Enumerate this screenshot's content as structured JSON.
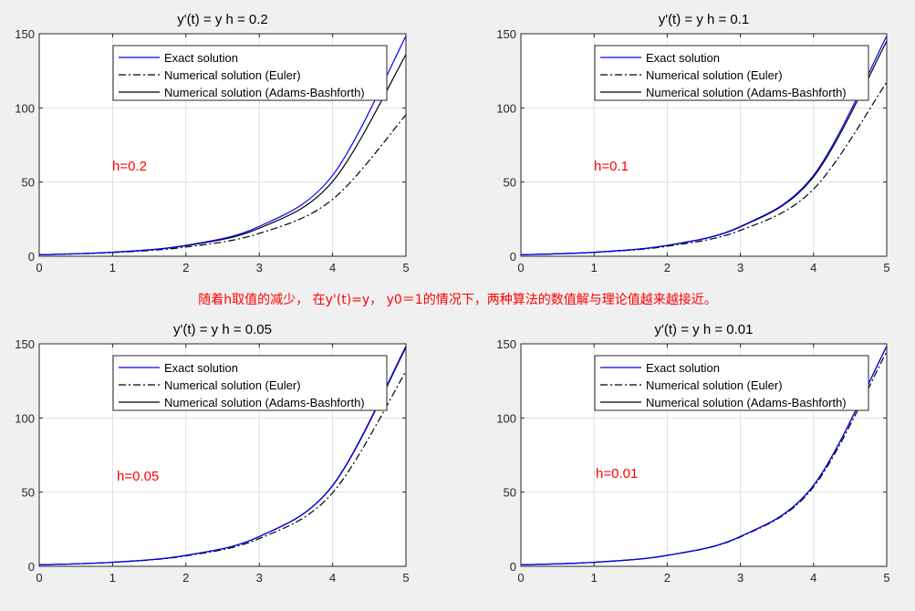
{
  "note": "随着h取值的减少， 在y'(t)=y， y0＝1的情况下，两种算法的数值解与理论值越来越接近。",
  "legend_labels": [
    "Exact solution",
    "Numerical solution (Euler)",
    "Numerical solution (Adams-Bashforth)"
  ],
  "colors": {
    "exact": "#0000ff",
    "euler": "#000000",
    "ab": "#000000",
    "annotation": "#ff0000"
  },
  "chart_data": [
    {
      "type": "line",
      "title": "y'(t) = y    h = 0.2",
      "h": 0.2,
      "annotation": "h=0.2",
      "xlim": [
        0,
        5
      ],
      "ylim": [
        0,
        150
      ],
      "xticks": [
        0,
        1,
        2,
        3,
        4,
        5
      ],
      "yticks": [
        0,
        50,
        100,
        150
      ],
      "grid": true,
      "legend": "top",
      "series": [
        {
          "name": "Exact solution",
          "style": "solid",
          "color": "#0000ff",
          "x": [
            0,
            1,
            2,
            3,
            4,
            5
          ],
          "y": [
            1,
            2.72,
            7.39,
            20.09,
            54.6,
            148.41
          ]
        },
        {
          "name": "Numerical solution (Euler)",
          "style": "dashdot",
          "color": "#000000",
          "x": [
            0,
            1,
            2,
            3,
            4,
            5
          ],
          "y": [
            1,
            2.49,
            6.19,
            15.41,
            38.34,
            95.4
          ]
        },
        {
          "name": "Numerical solution (Adams-Bashforth)",
          "style": "solid",
          "color": "#000000",
          "x": [
            0,
            1,
            2,
            3,
            4,
            5
          ],
          "y": [
            1,
            2.67,
            7.1,
            18.9,
            50.4,
            136
          ]
        }
      ]
    },
    {
      "type": "line",
      "title": "y'(t) = y    h = 0.1",
      "h": 0.1,
      "annotation": "h=0.1",
      "xlim": [
        0,
        5
      ],
      "ylim": [
        0,
        150
      ],
      "xticks": [
        0,
        1,
        2,
        3,
        4,
        5
      ],
      "yticks": [
        0,
        50,
        100,
        150
      ],
      "grid": true,
      "legend": "top",
      "series": [
        {
          "name": "Exact solution",
          "style": "solid",
          "color": "#0000ff",
          "x": [
            0,
            1,
            2,
            3,
            4,
            5
          ],
          "y": [
            1,
            2.72,
            7.39,
            20.09,
            54.6,
            148.41
          ]
        },
        {
          "name": "Numerical solution (Euler)",
          "style": "dashdot",
          "color": "#000000",
          "x": [
            0,
            1,
            2,
            3,
            4,
            5
          ],
          "y": [
            1,
            2.59,
            6.73,
            17.45,
            45.26,
            117.39
          ]
        },
        {
          "name": "Numerical solution (Adams-Bashforth)",
          "style": "solid",
          "color": "#000000",
          "x": [
            0,
            1,
            2,
            3,
            4,
            5
          ],
          "y": [
            1,
            2.71,
            7.3,
            19.8,
            53.5,
            145
          ]
        }
      ]
    },
    {
      "type": "line",
      "title": "y'(t) = y    h = 0.05",
      "h": 0.05,
      "annotation": "h=0.05",
      "xlim": [
        0,
        5
      ],
      "ylim": [
        0,
        150
      ],
      "xticks": [
        0,
        1,
        2,
        3,
        4,
        5
      ],
      "yticks": [
        0,
        50,
        100,
        150
      ],
      "grid": true,
      "legend": "top",
      "series": [
        {
          "name": "Exact solution",
          "style": "solid",
          "color": "#0000ff",
          "x": [
            0,
            1,
            2,
            3,
            4,
            5
          ],
          "y": [
            1,
            2.72,
            7.39,
            20.09,
            54.6,
            148.41
          ]
        },
        {
          "name": "Numerical solution (Euler)",
          "style": "dashdot",
          "color": "#000000",
          "x": [
            0,
            1,
            2,
            3,
            4,
            5
          ],
          "y": [
            1,
            2.65,
            7.04,
            18.68,
            49.56,
            131.5
          ]
        },
        {
          "name": "Numerical solution (Adams-Bashforth)",
          "style": "solid",
          "color": "#000000",
          "x": [
            0,
            1,
            2,
            3,
            4,
            5
          ],
          "y": [
            1,
            2.72,
            7.37,
            20.0,
            54.3,
            147.5
          ]
        }
      ]
    },
    {
      "type": "line",
      "title": "y'(t) = y    h = 0.01",
      "h": 0.01,
      "annotation": "h=0.01",
      "xlim": [
        0,
        5
      ],
      "ylim": [
        0,
        150
      ],
      "xticks": [
        0,
        1,
        2,
        3,
        4,
        5
      ],
      "yticks": [
        0,
        50,
        100,
        150
      ],
      "grid": true,
      "legend": "top",
      "series": [
        {
          "name": "Exact solution",
          "style": "solid",
          "color": "#0000ff",
          "x": [
            0,
            1,
            2,
            3,
            4,
            5
          ],
          "y": [
            1,
            2.72,
            7.39,
            20.09,
            54.6,
            148.41
          ]
        },
        {
          "name": "Numerical solution (Euler)",
          "style": "dashdot",
          "color": "#000000",
          "x": [
            0,
            1,
            2,
            3,
            4,
            5
          ],
          "y": [
            1,
            2.7,
            7.32,
            19.79,
            53.52,
            144.77
          ]
        },
        {
          "name": "Numerical solution (Adams-Bashforth)",
          "style": "solid",
          "color": "#000000",
          "x": [
            0,
            1,
            2,
            3,
            4,
            5
          ],
          "y": [
            1,
            2.72,
            7.39,
            20.09,
            54.58,
            148.3
          ]
        }
      ]
    }
  ]
}
